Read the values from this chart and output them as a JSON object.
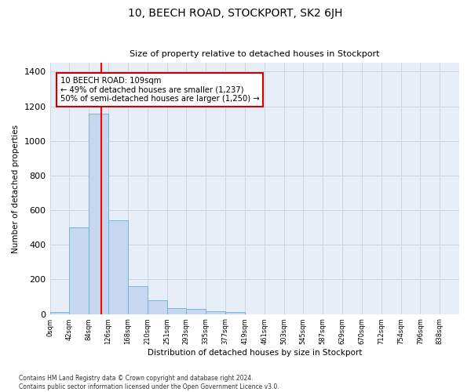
{
  "title": "10, BEECH ROAD, STOCKPORT, SK2 6JH",
  "subtitle": "Size of property relative to detached houses in Stockport",
  "xlabel": "Distribution of detached houses by size in Stockport",
  "ylabel": "Number of detached properties",
  "footer_line1": "Contains HM Land Registry data © Crown copyright and database right 2024.",
  "footer_line2": "Contains public sector information licensed under the Open Government Licence v3.0.",
  "bar_labels": [
    "0sqm",
    "42sqm",
    "84sqm",
    "126sqm",
    "168sqm",
    "210sqm",
    "251sqm",
    "293sqm",
    "335sqm",
    "377sqm",
    "419sqm",
    "461sqm",
    "503sqm",
    "545sqm",
    "587sqm",
    "629sqm",
    "670sqm",
    "712sqm",
    "754sqm",
    "796sqm",
    "838sqm"
  ],
  "bar_values": [
    10,
    500,
    1155,
    540,
    160,
    80,
    35,
    28,
    15,
    10,
    0,
    0,
    0,
    0,
    0,
    0,
    0,
    0,
    0,
    0,
    0
  ],
  "bar_color": "#c5d8f0",
  "bar_edge_color": "#6baed6",
  "grid_color": "#c8d4e8",
  "background_color": "#e8eef8",
  "annotation_box_text": "10 BEECH ROAD: 109sqm\n← 49% of detached houses are smaller (1,237)\n50% of semi-detached houses are larger (1,250) →",
  "annotation_box_color": "#cc0000",
  "vline_x": 2.62,
  "ylim": [
    0,
    1450
  ],
  "yticks": [
    0,
    200,
    400,
    600,
    800,
    1000,
    1200,
    1400
  ]
}
